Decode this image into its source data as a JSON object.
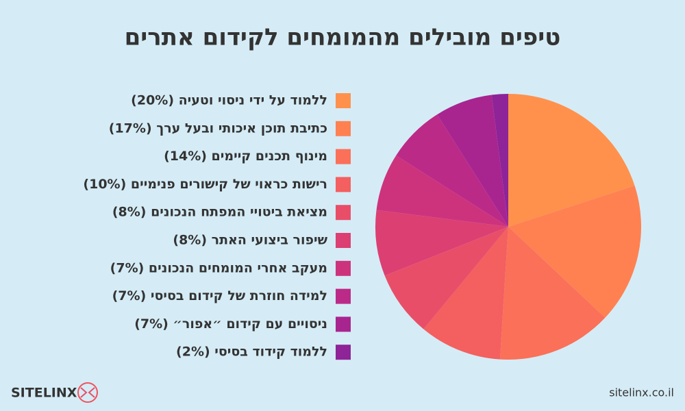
{
  "chart_data": {
    "type": "pie",
    "title": "טיפים מובילים מהמומחים לקידום אתרים",
    "categories": [
      "ללמוד על ידי ניסוי וטעיה (20%)",
      "כתיבת תוכן איכותי ובעל ערך (17%)",
      "מינוף תכנים קיימים (14%)",
      "רישות כראוי של קישורים פנימיים (10%)",
      "מציאת ביטויי המפתח הנכונים (8%)",
      "שיפור ביצועי האתר (8%)",
      "מעקב אחרי המומחים הנכונים (7%)",
      "למידה חוזרת של קידום בסיסי (7%)",
      "ניסויים עם קידום ״אפור״ (7%)",
      "ללמוד קידוד בסיסי (2%)"
    ],
    "values": [
      20,
      17,
      14,
      10,
      8,
      8,
      7,
      7,
      7,
      2
    ],
    "colors": [
      "#ff914d",
      "#ff8152",
      "#fb7058",
      "#f45f60",
      "#e94e68",
      "#dc3f72",
      "#cd337d",
      "#bc2a87",
      "#a82590",
      "#8e2497"
    ],
    "legend": "left"
  },
  "branding": {
    "logo": "SITELINX",
    "website": "sitelinx.co.il"
  }
}
